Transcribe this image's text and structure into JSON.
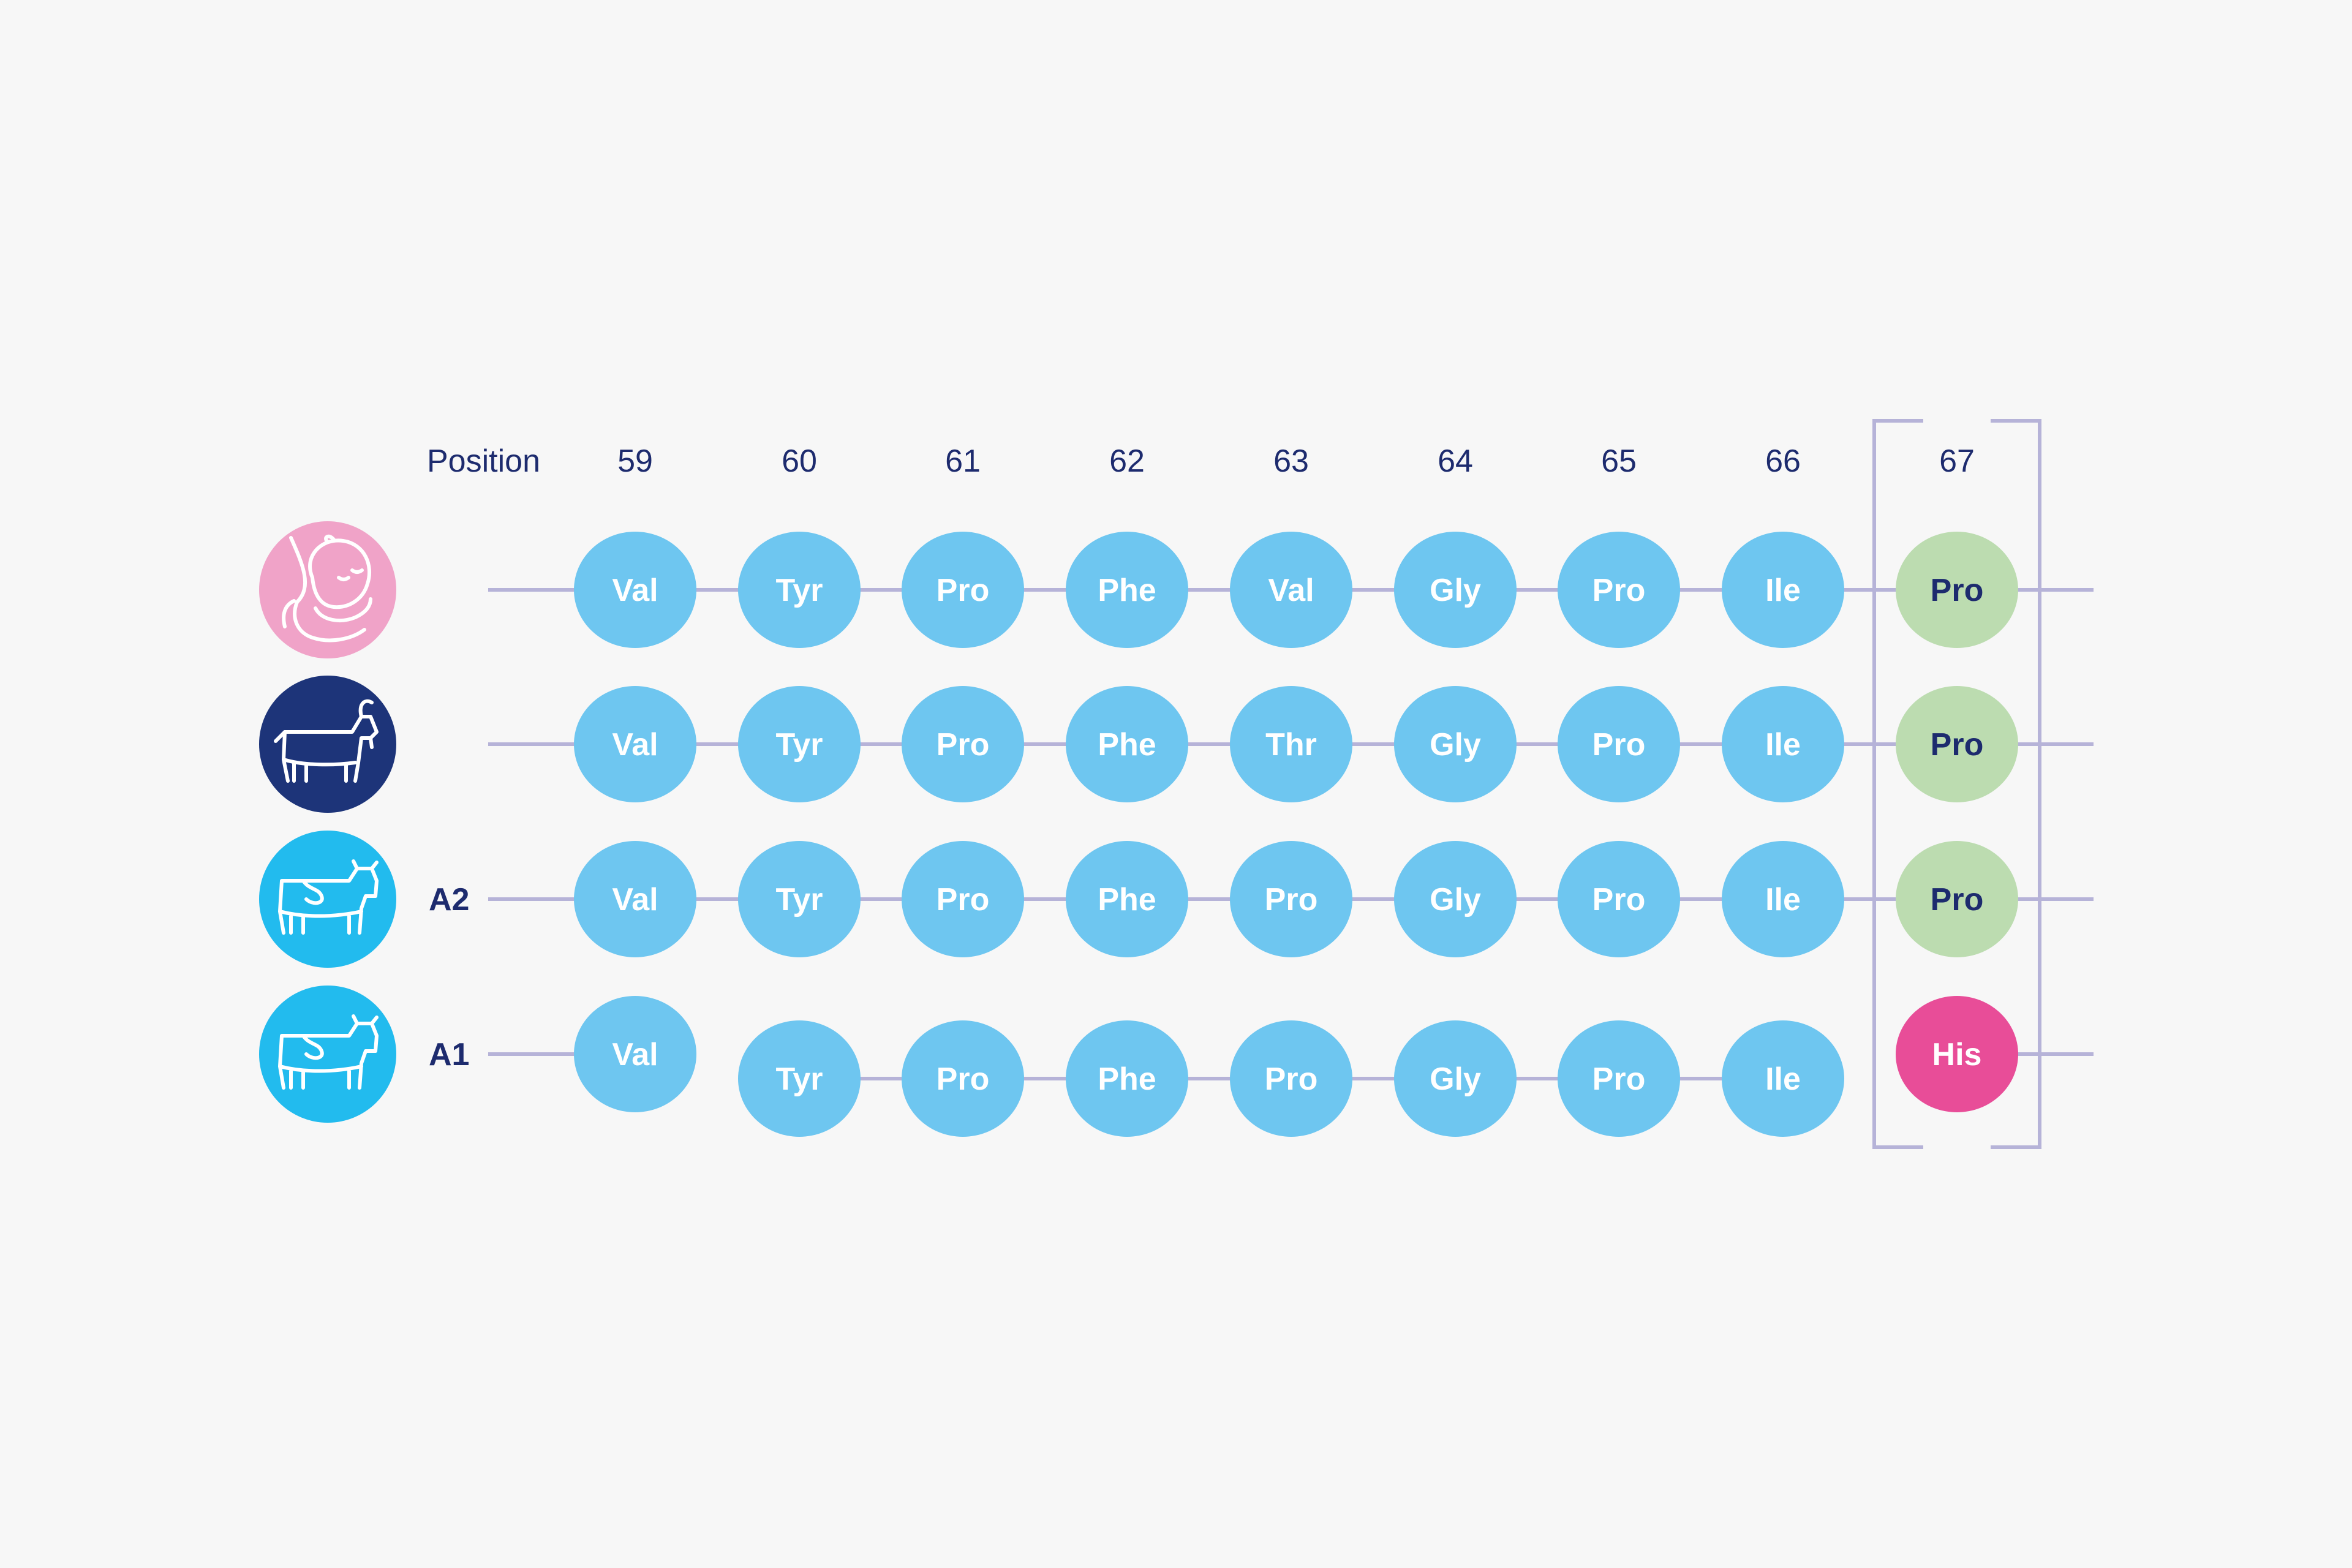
{
  "header": {
    "position_label": "Position",
    "positions": [
      "59",
      "60",
      "61",
      "62",
      "63",
      "64",
      "65",
      "66",
      "67"
    ]
  },
  "rows": [
    {
      "source_icon": "breastfeeding-baby-icon",
      "variant_label": "",
      "residues": [
        "Val",
        "Tyr",
        "Pro",
        "Phe",
        "Val",
        "Gly",
        "Pro",
        "Ile",
        "Pro"
      ]
    },
    {
      "source_icon": "goat-icon",
      "variant_label": "",
      "residues": [
        "Val",
        "Tyr",
        "Pro",
        "Phe",
        "Thr",
        "Gly",
        "Pro",
        "Ile",
        "Pro"
      ]
    },
    {
      "source_icon": "cow-icon",
      "variant_label": "A2",
      "residues": [
        "Val",
        "Tyr",
        "Pro",
        "Phe",
        "Pro",
        "Gly",
        "Pro",
        "Ile",
        "Pro"
      ]
    },
    {
      "source_icon": "cow-icon",
      "variant_label": "A1",
      "residues": [
        "Val",
        "Tyr",
        "Pro",
        "Phe",
        "Pro",
        "Gly",
        "Pro",
        "Ile",
        "His"
      ]
    }
  ],
  "highlighted_position": "67",
  "colors": {
    "background": "#f7f7f7",
    "residue": "#6ec6f0",
    "residue_text": "#ffffff",
    "position67_pro": "#bcdcb0",
    "position67_his": "#e84d98",
    "dark_text": "#1d2b6e",
    "line": "#b6b3d8",
    "human_icon_bg": "#f0a3c8",
    "goat_icon_bg": "#1d3479",
    "cow_icon_bg": "#22bbee"
  }
}
